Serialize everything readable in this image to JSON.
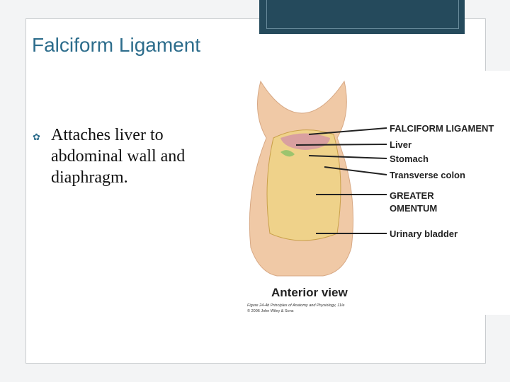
{
  "slide": {
    "title": "Falciform Ligament",
    "bullets": [
      "Attaches liver to abdominal wall and diaphragm."
    ],
    "figure": {
      "labels": [
        "FALCIFORM LIGAMENT",
        "Liver",
        "Stomach",
        "Transverse colon",
        "GREATER",
        "OMENTUM",
        "Urinary bladder"
      ],
      "caption": "Anterior view",
      "credit": [
        "Figure 24-4b Principles of Anatomy and Physiology, 11/e",
        "© 2006 John Wiley & Sons"
      ]
    }
  }
}
